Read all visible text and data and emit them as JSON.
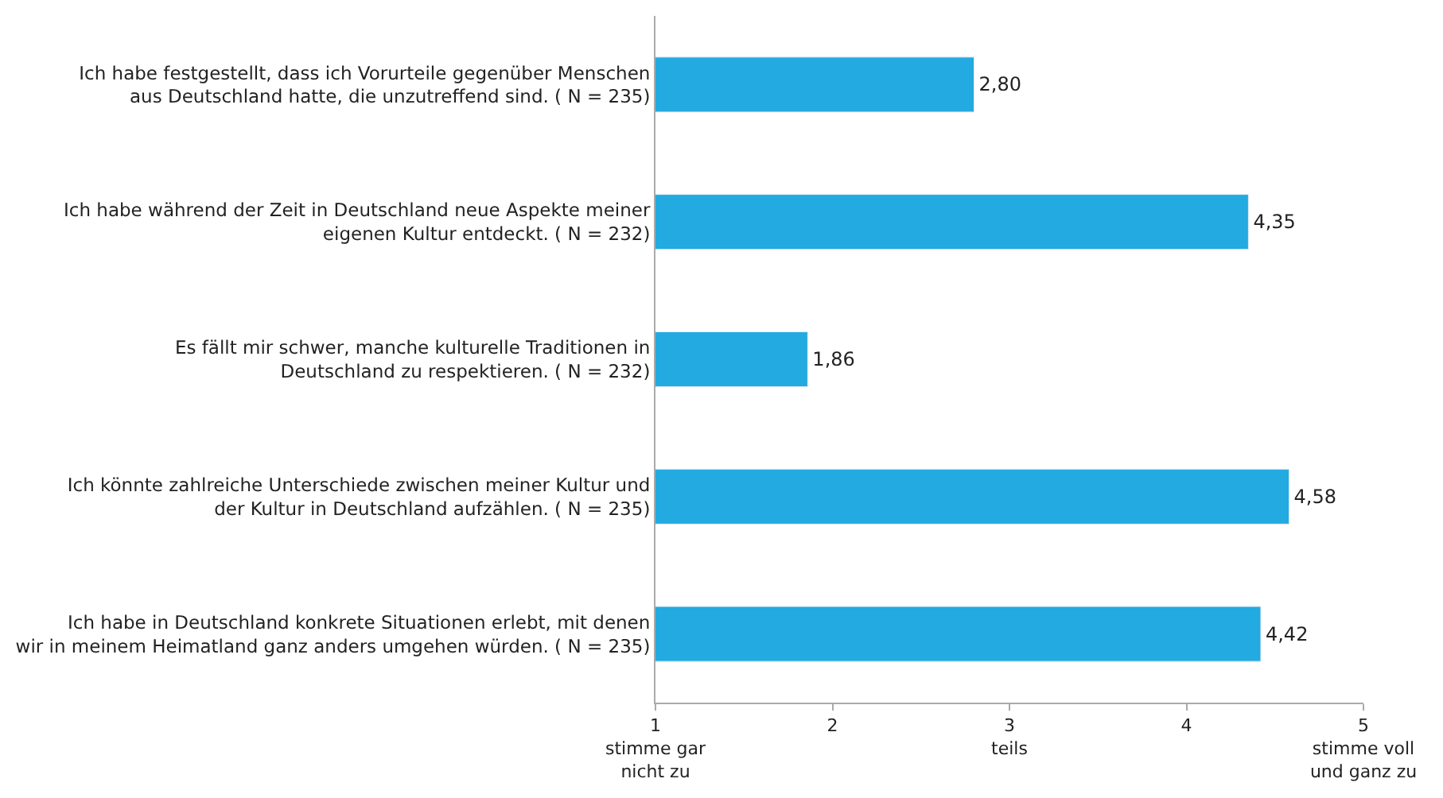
{
  "chart_data": {
    "type": "bar",
    "orientation": "horizontal",
    "categories": [
      "Ich habe festgestellt, dass ich Vorurteile gegenüber Menschen aus Deutschland hatte, die unzutreffend sind. ( N = 235)",
      "Ich habe während der Zeit in Deutschland neue Aspekte meiner eigenen Kultur entdeckt. ( N = 232)",
      "Es fällt mir schwer, manche kulturelle Traditionen in Deutschland zu respektieren. ( N = 232)",
      "Ich könnte zahlreiche Unterschiede zwischen meiner Kultur und der Kultur in Deutschland aufzählen. ( N = 235)",
      "Ich habe in Deutschland konkrete Situationen erlebt, mit denen wir in meinem Heimatland ganz anders umgehen würden. ( N = 235)"
    ],
    "values": [
      2.8,
      4.35,
      1.86,
      4.58,
      4.42
    ],
    "value_labels": [
      "2,80",
      "4,35",
      "1,86",
      "4,58",
      "4,42"
    ],
    "color": "#22aae1",
    "xlim": [
      1,
      5
    ],
    "xticks": [
      {
        "value": 1,
        "label": "1\nstimme gar\nnicht zu"
      },
      2,
      {
        "value": 3,
        "label": "3\nteils"
      },
      4,
      {
        "value": 5,
        "label": "5\nstimme voll\nund ganz zu"
      }
    ]
  }
}
